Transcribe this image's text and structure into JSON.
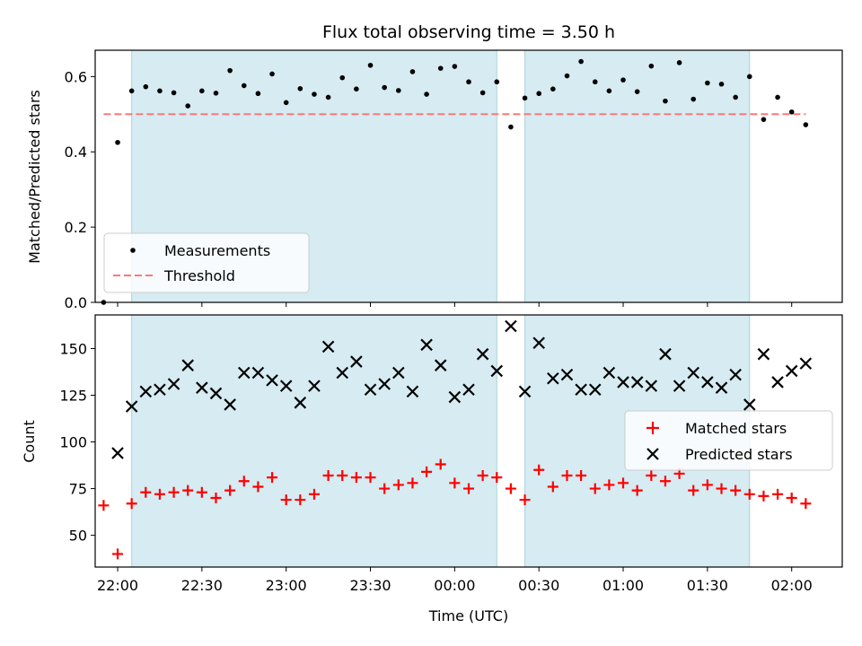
{
  "chart_data": {
    "type": "scatter",
    "title": "Flux total observing time = 3.50 h",
    "xlabel": "Time (UTC)",
    "x_tick_labels": [
      "22:00",
      "22:30",
      "23:00",
      "23:30",
      "00:00",
      "00:30",
      "01:00",
      "01:30",
      "02:00"
    ],
    "shaded_intervals": [
      [
        "22:05",
        "00:15"
      ],
      [
        "00:25",
        "01:45"
      ]
    ],
    "times": [
      "21:55",
      "22:00",
      "22:05",
      "22:10",
      "22:15",
      "22:20",
      "22:25",
      "22:30",
      "22:35",
      "22:40",
      "22:45",
      "22:50",
      "22:55",
      "23:00",
      "23:05",
      "23:10",
      "23:15",
      "23:20",
      "23:25",
      "23:30",
      "23:35",
      "23:40",
      "23:45",
      "23:50",
      "23:55",
      "00:00",
      "00:05",
      "00:10",
      "00:15",
      "00:20",
      "00:25",
      "00:30",
      "00:35",
      "00:40",
      "00:45",
      "00:50",
      "00:55",
      "01:00",
      "01:05",
      "01:10",
      "01:15",
      "01:20",
      "01:25",
      "01:30",
      "01:35",
      "01:40",
      "01:45",
      "01:50",
      "01:55",
      "02:00",
      "02:05"
    ],
    "top": {
      "ylabel": "Matched/Predicted stars",
      "ylim": [
        0,
        0.67
      ],
      "y_tick_labels": [
        "0.0",
        "0.2",
        "0.4",
        "0.6"
      ],
      "threshold": 0.5,
      "legend": [
        "Measurements",
        "Threshold"
      ],
      "legend_position": "lower-left",
      "series": [
        {
          "name": "Measurements",
          "values": [
            0.0,
            0.425,
            0.562,
            0.573,
            0.562,
            0.557,
            0.522,
            0.562,
            0.556,
            0.616,
            0.576,
            0.555,
            0.607,
            0.531,
            0.568,
            0.553,
            0.545,
            0.597,
            0.567,
            0.63,
            0.571,
            0.563,
            0.613,
            0.553,
            0.622,
            0.627,
            0.586,
            0.557,
            0.586,
            0.466,
            0.543,
            0.555,
            0.567,
            0.602,
            0.64,
            0.586,
            0.562,
            0.591,
            0.56,
            0.628,
            0.535,
            0.637,
            0.54,
            0.583,
            0.58,
            0.545,
            0.6,
            0.486,
            0.545,
            0.506,
            0.472
          ]
        },
        {
          "name": "Threshold"
        }
      ]
    },
    "bottom": {
      "ylabel": "Count",
      "ylim": [
        33,
        168
      ],
      "y_tick_labels": [
        "50",
        "75",
        "100",
        "125",
        "150"
      ],
      "legend": [
        "Matched stars",
        "Predicted stars"
      ],
      "legend_position": "center-right",
      "series": [
        {
          "name": "Matched stars",
          "values": [
            66,
            40,
            67,
            73,
            72,
            73,
            74,
            73,
            70,
            74,
            79,
            76,
            81,
            69,
            69,
            72,
            82,
            82,
            81,
            81,
            75,
            77,
            78,
            84,
            88,
            78,
            75,
            82,
            81,
            75,
            69,
            85,
            76,
            82,
            82,
            75,
            77,
            78,
            74,
            82,
            79,
            83,
            74,
            77,
            75,
            74,
            72,
            71,
            72,
            70,
            67
          ]
        },
        {
          "name": "Predicted stars",
          "values": [
            null,
            94,
            119,
            127,
            128,
            131,
            141,
            129,
            126,
            120,
            137,
            137,
            133,
            130,
            121,
            130,
            151,
            137,
            143,
            128,
            131,
            137,
            127,
            152,
            141,
            124,
            128,
            147,
            138,
            162,
            127,
            153,
            134,
            136,
            128,
            128,
            137,
            132,
            132,
            130,
            147,
            130,
            137,
            132,
            129,
            136,
            120,
            147,
            132,
            138,
            142
          ]
        }
      ]
    }
  }
}
